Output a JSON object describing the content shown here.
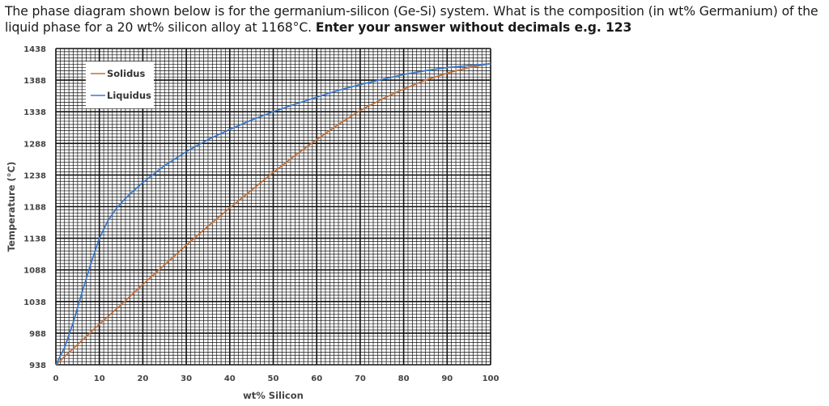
{
  "question": {
    "text": "The phase diagram shown below is for the germanium-silicon (Ge-Si) system. What is the composition (in wt% Germanium) of the liquid phase for a 20 wt% silicon alloy at 1168°C. ",
    "instruction": "Enter your answer without decimals e.g. 123"
  },
  "chart_data": {
    "type": "line",
    "title": "",
    "xlabel": "wt% Silicon",
    "ylabel": "Temperature (°C)",
    "xlim": [
      0,
      100
    ],
    "ylim": [
      938,
      1438
    ],
    "xticks": [
      0,
      10,
      20,
      30,
      40,
      50,
      60,
      70,
      80,
      90,
      100
    ],
    "yticks": [
      938,
      988,
      1038,
      1088,
      1138,
      1188,
      1238,
      1288,
      1338,
      1388,
      1438
    ],
    "grid": true,
    "legend_position": "top-left",
    "series": [
      {
        "name": "Solidus",
        "color": "#c0703a",
        "x": [
          0,
          5,
          10,
          15,
          20,
          25,
          30,
          35,
          40,
          45,
          50,
          55,
          60,
          65,
          70,
          75,
          80,
          85,
          90,
          95,
          100
        ],
        "y": [
          938,
          970,
          1002,
          1033,
          1065,
          1096,
          1127,
          1157,
          1186,
          1214,
          1242,
          1269,
          1294,
          1318,
          1340,
          1358,
          1374,
          1388,
          1399,
          1408,
          1414
        ]
      },
      {
        "name": "Liquidus",
        "color": "#3a78c9",
        "x": [
          0,
          2,
          4,
          6,
          8,
          10,
          12,
          14,
          16,
          18,
          20,
          25,
          30,
          35,
          40,
          45,
          50,
          55,
          60,
          65,
          70,
          75,
          80,
          85,
          90,
          95,
          100
        ],
        "y": [
          938,
          965,
          1005,
          1052,
          1097,
          1138,
          1166,
          1186,
          1201,
          1214,
          1226,
          1253,
          1275,
          1294,
          1310,
          1325,
          1338,
          1350,
          1361,
          1372,
          1381,
          1389,
          1397,
          1403,
          1408,
          1411,
          1414
        ]
      }
    ]
  }
}
